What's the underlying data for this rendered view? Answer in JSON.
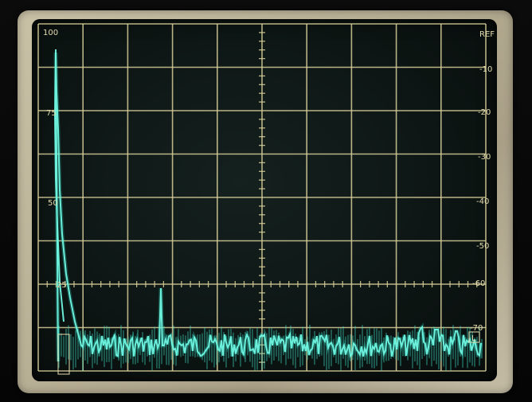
{
  "left_scale": [
    "100",
    "75",
    "50",
    "25"
  ],
  "right_scale": [
    "REF",
    "-10",
    "-20",
    "-30",
    "-40",
    "-50",
    "-60",
    "-70"
  ],
  "corner_marker": "L",
  "colors": {
    "trace": "#6ff7e1",
    "graticule": "#d8cf9a",
    "bezel": "#c9c1a6",
    "screen": "#0d1614"
  }
}
